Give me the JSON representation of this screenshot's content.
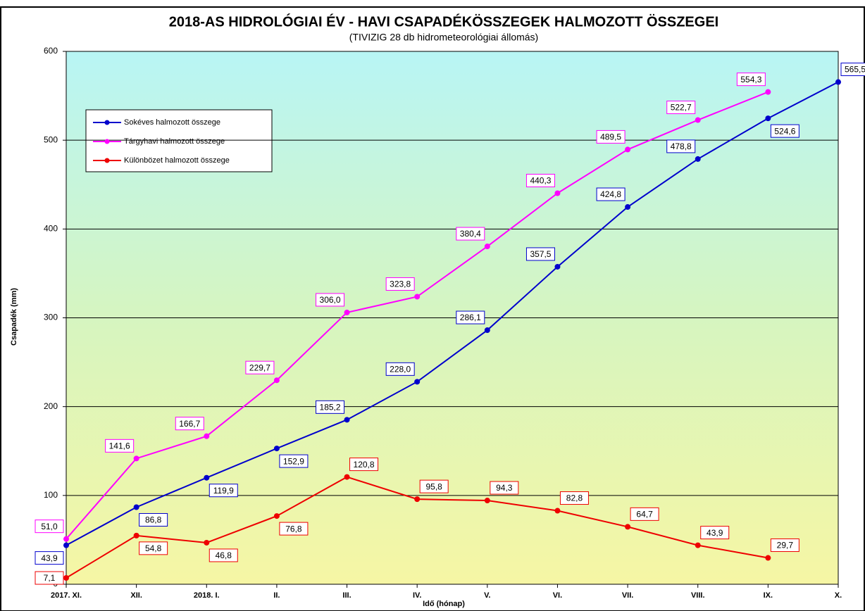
{
  "chart_data": {
    "type": "line",
    "title": "2018-AS HIDROLÓGIAI ÉV - HAVI CSAPADÉKÖSSZEGEK HALMOZOTT ÖSSZEGEI",
    "subtitle": "(TIVIZIG  28 db hidrometeorológiai állomás)",
    "x_label": "Idő (hónap)",
    "y_label": "Csapadék (mm)",
    "categories": [
      "2017. XI.",
      "XII.",
      "2018. I.",
      "II.",
      "III.",
      "IV.",
      "V.",
      "VI.",
      "VII.",
      "VIII.",
      "IX.",
      "X."
    ],
    "series": [
      {
        "name": "Sokéves halmozott összege",
        "color": "#0000cc",
        "values": [
          43.9,
          86.8,
          119.9,
          152.9,
          185.2,
          228.0,
          286.1,
          357.5,
          424.8,
          478.8,
          524.6,
          565.5
        ],
        "value_labels": [
          "43,9",
          "86,8",
          "119,9",
          "152,9",
          "185,2",
          "228,0",
          "286,1",
          "357,5",
          "424,8",
          "478,8",
          "524,6",
          "565,5"
        ]
      },
      {
        "name": "Tárgyhavi halmozott összege",
        "color": "#ff00ff",
        "values": [
          51.0,
          141.6,
          166.7,
          229.7,
          306.0,
          323.8,
          380.4,
          440.3,
          489.5,
          522.7,
          554.3,
          null
        ],
        "value_labels": [
          "51,0",
          "141,6",
          "166,7",
          "229,7",
          "306,0",
          "323,8",
          "380,4",
          "440,3",
          "489,5",
          "522,7",
          "554,3",
          null
        ]
      },
      {
        "name": "Különbözet halmozott összege",
        "color": "#ee0000",
        "values": [
          7.1,
          54.8,
          46.8,
          76.8,
          120.8,
          95.8,
          94.3,
          82.8,
          64.7,
          43.9,
          29.7,
          null
        ],
        "value_labels": [
          "7,1",
          "54,8",
          "46,8",
          "76,8",
          "120,8",
          "95,8",
          "94,3",
          "82,8",
          "64,7",
          "43,9",
          "29,7",
          null
        ]
      }
    ],
    "ylim": [
      0,
      600
    ],
    "yticks": [
      0,
      100,
      200,
      300,
      400,
      500,
      600
    ],
    "grid": true,
    "legend": "upper left"
  }
}
